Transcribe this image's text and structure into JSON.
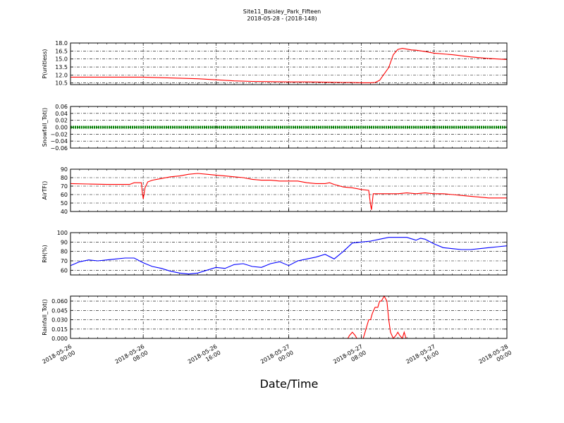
{
  "figure": {
    "title_line1": "Site11_Baisley_Park_Fifteen",
    "title_line2": "2018-05-28 - (2018-148)",
    "xlabel": "Date/Time",
    "x_ticks": [
      {
        "line1": "2018-05-26",
        "line2": "00:00"
      },
      {
        "line1": "2018-05-26",
        "line2": "08:00"
      },
      {
        "line1": "2018-05-26",
        "line2": "16:00"
      },
      {
        "line1": "2018-05-27",
        "line2": "00:00"
      },
      {
        "line1": "2018-05-27",
        "line2": "08:00"
      },
      {
        "line1": "2018-05-27",
        "line2": "16:00"
      },
      {
        "line1": "2018-05-28",
        "line2": "00:00"
      }
    ]
  },
  "chart_data": [
    {
      "type": "line",
      "ylabel": "P(unitless)",
      "color": "#ff0000",
      "ylim": [
        10.2,
        18.0
      ],
      "yticks": [
        "10.5",
        "12.0",
        "13.5",
        "15.0",
        "16.5",
        "18.0"
      ],
      "ytick_values": [
        10.5,
        12.0,
        13.5,
        15.0,
        16.5,
        18.0
      ],
      "x_unit": "hours since 2018-05-26 00:00",
      "xlim": [
        0,
        48
      ],
      "x": [
        0,
        2,
        4,
        6,
        8,
        10,
        12,
        14,
        16,
        18,
        20,
        22,
        24,
        26,
        28,
        30,
        31,
        32,
        33,
        33.5,
        34,
        34.5,
        35,
        35.5,
        36,
        36.5,
        37,
        37.5,
        38,
        39,
        40,
        42,
        44,
        46,
        48
      ],
      "y": [
        11.6,
        11.6,
        11.6,
        11.6,
        11.6,
        11.5,
        11.4,
        11.3,
        11.1,
        10.9,
        10.8,
        10.75,
        10.7,
        10.7,
        10.65,
        10.6,
        10.6,
        10.55,
        10.55,
        10.6,
        11.0,
        12.2,
        13.4,
        15.8,
        16.8,
        17.0,
        16.85,
        16.7,
        16.65,
        16.4,
        16.1,
        15.8,
        15.4,
        15.1,
        14.9
      ]
    },
    {
      "type": "line",
      "ylabel": "Snowfall_Tot()",
      "color": "#008000",
      "ylim": [
        -0.06,
        0.06
      ],
      "yticks": [
        "−0.06",
        "−0.04",
        "−0.02",
        "0.00",
        "0.02",
        "0.04",
        "0.06"
      ],
      "ytick_values": [
        -0.06,
        -0.04,
        -0.02,
        0.0,
        0.02,
        0.04,
        0.06
      ],
      "x_unit": "hours since 2018-05-26 00:00",
      "xlim": [
        0,
        48
      ],
      "x": [
        0,
        48
      ],
      "y": [
        0.0,
        0.0
      ]
    },
    {
      "type": "line",
      "ylabel": "AirTF()",
      "color": "#ff0000",
      "ylim": [
        40,
        90
      ],
      "yticks": [
        "40",
        "50",
        "60",
        "70",
        "80",
        "90"
      ],
      "ytick_values": [
        40,
        50,
        60,
        70,
        80,
        90
      ],
      "x_unit": "hours since 2018-05-26 00:00",
      "xlim": [
        0,
        48
      ],
      "x": [
        0,
        2,
        4,
        6,
        6.5,
        7,
        7.8,
        7.9,
        8.0,
        8.2,
        8.5,
        9,
        10,
        11,
        12,
        13,
        14,
        15,
        16,
        17,
        18,
        19,
        20,
        21,
        22,
        23,
        24,
        25,
        26,
        27,
        28,
        28.5,
        29,
        30,
        31,
        32,
        32.8,
        33.0,
        33.1,
        33.3,
        34,
        35,
        36,
        37,
        38,
        39,
        40,
        41,
        42,
        43,
        44,
        45,
        46,
        47,
        48
      ],
      "y": [
        73,
        72.5,
        72,
        72,
        72,
        74,
        74,
        62,
        55,
        68,
        75,
        77,
        79,
        81,
        82,
        84,
        85,
        84,
        83,
        82,
        81,
        80,
        78,
        77,
        77,
        76,
        76,
        76,
        74,
        73,
        73,
        74,
        72,
        69,
        68,
        66,
        65,
        48,
        42,
        61,
        61,
        61,
        61,
        62,
        61,
        62,
        61,
        61,
        60,
        59,
        58,
        57,
        56,
        56,
        56
      ]
    },
    {
      "type": "line",
      "ylabel": "RH(%)",
      "color": "#0000ff",
      "ylim": [
        55,
        100
      ],
      "yticks": [
        "60",
        "70",
        "80",
        "90",
        "100"
      ],
      "ytick_values": [
        60,
        70,
        80,
        90,
        100
      ],
      "x_unit": "hours since 2018-05-26 00:00",
      "xlim": [
        0,
        48
      ],
      "x": [
        0,
        1,
        2,
        3,
        4,
        5,
        6,
        7,
        8,
        9,
        10,
        11,
        12,
        13,
        14,
        15,
        16,
        17,
        18,
        19,
        20,
        21,
        22,
        23,
        24,
        25,
        26,
        27,
        28,
        29,
        30,
        31,
        32,
        33,
        34,
        35,
        36,
        37,
        38,
        38.5,
        39,
        40,
        41,
        42,
        43,
        44,
        45,
        46,
        47,
        48
      ],
      "y": [
        65,
        69,
        71,
        70,
        71,
        72,
        73,
        73,
        68,
        64,
        62,
        59,
        57,
        56,
        57,
        60,
        63,
        62,
        66,
        67,
        64,
        63,
        67,
        69,
        65,
        70,
        72,
        74,
        77,
        72,
        80,
        89,
        90,
        91,
        93,
        95,
        95,
        95,
        92,
        94,
        93,
        88,
        84,
        83,
        82,
        82,
        83,
        84,
        85,
        86
      ]
    },
    {
      "type": "line",
      "ylabel": "Rainfall_Tot()",
      "color": "#ff0000",
      "ylim": [
        0.0,
        0.068
      ],
      "yticks": [
        "0.000",
        "0.015",
        "0.030",
        "0.045",
        "0.060"
      ],
      "ytick_values": [
        0.0,
        0.015,
        0.03,
        0.045,
        0.06
      ],
      "x_unit": "hours since 2018-05-26 00:00",
      "xlim": [
        0,
        48
      ],
      "x": [
        0,
        30.5,
        30.7,
        31.0,
        31.3,
        31.5,
        32.0,
        32.2,
        32.5,
        32.8,
        33.0,
        33.2,
        33.5,
        33.8,
        34.0,
        34.2,
        34.5,
        34.8,
        35.0,
        35.2,
        35.5,
        35.8,
        36.0,
        36.2,
        36.5,
        36.7,
        36.9,
        37.2,
        37.5,
        48
      ],
      "y": [
        0,
        0,
        0.005,
        0.01,
        0.005,
        0.0,
        0.0,
        0.0,
        0.015,
        0.03,
        0.03,
        0.04,
        0.05,
        0.05,
        0.06,
        0.06,
        0.068,
        0.06,
        0.03,
        0.01,
        0.0,
        0.005,
        0.01,
        0.005,
        0.0,
        0.01,
        0.0,
        0.0,
        0.0,
        0.0
      ]
    }
  ]
}
